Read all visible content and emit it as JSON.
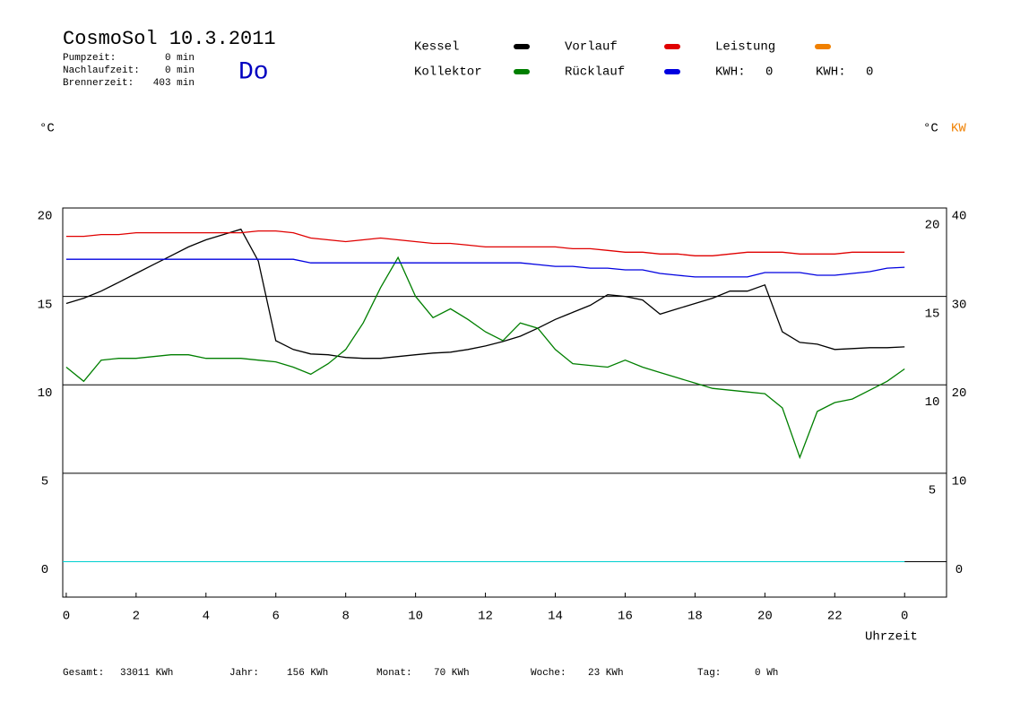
{
  "header": {
    "title": "CosmoSol 10.3.2011",
    "day": "Do",
    "info": [
      {
        "label": "Pumpzeit:",
        "value": "0 min"
      },
      {
        "label": "Nachlaufzeit:",
        "value": "0 min"
      },
      {
        "label": "Brennerzeit:",
        "value": "403 min"
      }
    ]
  },
  "chart_data": {
    "type": "line",
    "x": [
      0,
      0.5,
      1,
      1.5,
      2,
      2.5,
      3,
      3.5,
      4,
      4.5,
      5,
      5.5,
      6,
      6.5,
      7,
      7.5,
      8,
      8.5,
      9,
      9.5,
      10,
      10.5,
      11,
      11.5,
      12,
      12.5,
      13,
      13.5,
      14,
      14.5,
      15,
      15.5,
      16,
      16.5,
      17,
      17.5,
      18,
      18.5,
      19,
      19.5,
      20,
      20.5,
      21,
      21.5,
      22,
      22.5,
      23,
      23.5,
      24
    ],
    "series": [
      {
        "name": "Kessel",
        "color": "#000000",
        "values": [
          14.6,
          14.9,
          15.3,
          15.8,
          16.3,
          16.8,
          17.3,
          17.8,
          18.2,
          18.5,
          18.8,
          17.0,
          12.5,
          12.0,
          11.75,
          11.7,
          11.55,
          11.5,
          11.5,
          11.6,
          11.7,
          11.8,
          11.85,
          12.0,
          12.2,
          12.45,
          12.75,
          13.2,
          13.7,
          14.1,
          14.5,
          15.1,
          15.0,
          14.8,
          14.0,
          14.3,
          14.6,
          14.9,
          15.3,
          15.3,
          15.65,
          13.0,
          12.4,
          12.3,
          12.0,
          12.05,
          12.1,
          12.1,
          12.15
        ]
      },
      {
        "name": "Kollektor",
        "color": "#007f00",
        "values": [
          11.0,
          10.2,
          11.4,
          11.5,
          11.5,
          11.6,
          11.7,
          11.7,
          11.5,
          11.5,
          11.5,
          11.4,
          11.3,
          11.0,
          10.6,
          11.2,
          12.0,
          13.5,
          15.5,
          17.2,
          15.0,
          13.8,
          14.3,
          13.7,
          13.0,
          12.5,
          13.5,
          13.2,
          12.0,
          11.2,
          11.1,
          11.0,
          11.4,
          11.0,
          10.7,
          10.4,
          10.1,
          9.8,
          9.7,
          9.6,
          9.5,
          8.7,
          5.9,
          8.5,
          9.0,
          9.2,
          9.7,
          10.2,
          10.9
        ]
      },
      {
        "name": "Vorlauf",
        "color": "#e00000",
        "values": [
          18.4,
          18.4,
          18.5,
          18.5,
          18.6,
          18.6,
          18.6,
          18.6,
          18.6,
          18.6,
          18.6,
          18.7,
          18.7,
          18.6,
          18.3,
          18.2,
          18.1,
          18.2,
          18.3,
          18.2,
          18.1,
          18.0,
          18.0,
          17.9,
          17.8,
          17.8,
          17.8,
          17.8,
          17.8,
          17.7,
          17.7,
          17.6,
          17.5,
          17.5,
          17.4,
          17.4,
          17.3,
          17.3,
          17.4,
          17.5,
          17.5,
          17.5,
          17.4,
          17.4,
          17.4,
          17.5,
          17.5,
          17.5,
          17.5
        ]
      },
      {
        "name": "Rücklauf",
        "color": "#0000e0",
        "values": [
          17.1,
          17.1,
          17.1,
          17.1,
          17.1,
          17.1,
          17.1,
          17.1,
          17.1,
          17.1,
          17.1,
          17.1,
          17.1,
          17.1,
          16.9,
          16.9,
          16.9,
          16.9,
          16.9,
          16.9,
          16.9,
          16.9,
          16.9,
          16.9,
          16.9,
          16.9,
          16.9,
          16.8,
          16.7,
          16.7,
          16.6,
          16.6,
          16.5,
          16.5,
          16.3,
          16.2,
          16.1,
          16.1,
          16.1,
          16.1,
          16.35,
          16.35,
          16.35,
          16.2,
          16.2,
          16.3,
          16.4,
          16.6,
          16.65
        ]
      },
      {
        "name": "Leistung",
        "color": "#f08000",
        "values": [
          null,
          null,
          null,
          null,
          null,
          null,
          null,
          null,
          null,
          null,
          null,
          null,
          null,
          null,
          null,
          null,
          null,
          null,
          null,
          null,
          null,
          null,
          null,
          null,
          null,
          null,
          null,
          null,
          null,
          null,
          null,
          null,
          null,
          null,
          null,
          null,
          null,
          null,
          null,
          null,
          null,
          null,
          null,
          null,
          null,
          null,
          null,
          null,
          null
        ]
      }
    ],
    "kwh": [
      {
        "label": "KWH:",
        "value": 0,
        "color": "#f08000"
      },
      {
        "label": "KWH:",
        "value": 0,
        "color": "#7f207f"
      }
    ],
    "xlim": [
      -0.1,
      25.2
    ],
    "xticks": [
      0,
      2,
      4,
      6,
      8,
      10,
      12,
      14,
      16,
      18,
      20,
      22,
      {
        "value": 24,
        "label": "0"
      }
    ],
    "x_label": "Uhrzeit",
    "ylim": [
      -2,
      20
    ],
    "yticks": [
      0,
      5,
      10,
      15,
      20
    ],
    "y_label": "°C",
    "yticks_right": [
      5,
      10,
      15,
      20
    ],
    "y_right_label": "°C",
    "y2lim": [
      -4,
      40
    ],
    "y2ticks": [
      0,
      10,
      20,
      30,
      40
    ],
    "y2_label": "KW",
    "y2_color": "#f08000",
    "grid": true
  },
  "footer": [
    {
      "label": "Gesamt:",
      "value": "33011 KWh"
    },
    {
      "label": "Jahr:",
      "value": "156 KWh"
    },
    {
      "label": "Monat:",
      "value": "70 KWh"
    },
    {
      "label": "Woche:",
      "value": "23 KWh"
    },
    {
      "label": "Tag:",
      "value": "0 Wh"
    }
  ]
}
